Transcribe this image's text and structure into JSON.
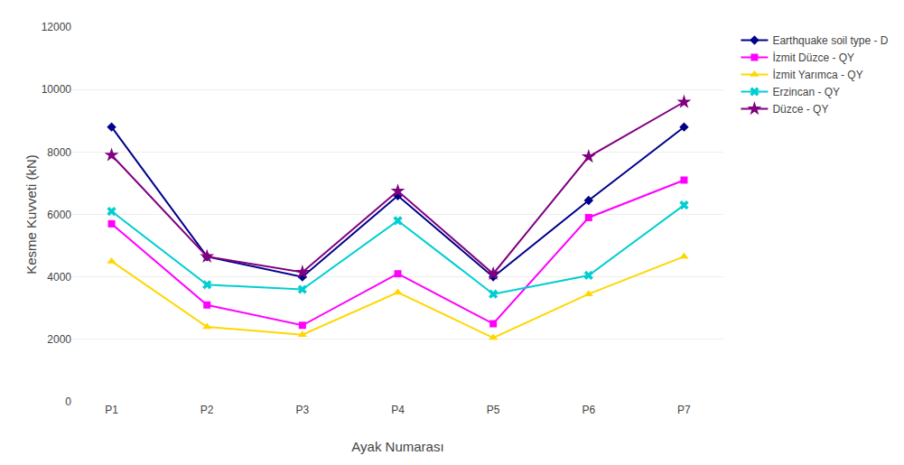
{
  "chart_data": {
    "type": "line",
    "categories": [
      "P1",
      "P2",
      "P3",
      "P4",
      "P5",
      "P6",
      "P7"
    ],
    "series": [
      {
        "name": "Earthquake soil type - D",
        "color": "#00008B",
        "marker": "diamond",
        "values": [
          8800,
          4650,
          4000,
          6600,
          4000,
          6450,
          8800
        ]
      },
      {
        "name": "İzmit Düzce - QY",
        "color": "#FF00FF",
        "marker": "square",
        "values": [
          5700,
          3100,
          2450,
          4100,
          2500,
          5900,
          7100
        ]
      },
      {
        "name": "İzmit Yarımca - QY",
        "color": "#FFD700",
        "marker": "triangle-up",
        "values": [
          4500,
          2400,
          2150,
          3500,
          2050,
          3450,
          4650
        ]
      },
      {
        "name": "Erzincan - QY",
        "color": "#00CED1",
        "marker": "x",
        "values": [
          6100,
          3750,
          3600,
          5800,
          3450,
          4050,
          6300
        ]
      },
      {
        "name": "Düzce - QY",
        "color": "#800080",
        "marker": "star",
        "values": [
          7900,
          4650,
          4150,
          6750,
          4100,
          7850,
          9600
        ]
      }
    ],
    "xlabel": "Ayak Numarası",
    "ylabel": "Kesme Kuvveti (kN)",
    "ylim": [
      0,
      12000
    ],
    "yticks": [
      0,
      2000,
      4000,
      6000,
      8000,
      10000,
      12000
    ],
    "grid": true,
    "legend": "right"
  }
}
